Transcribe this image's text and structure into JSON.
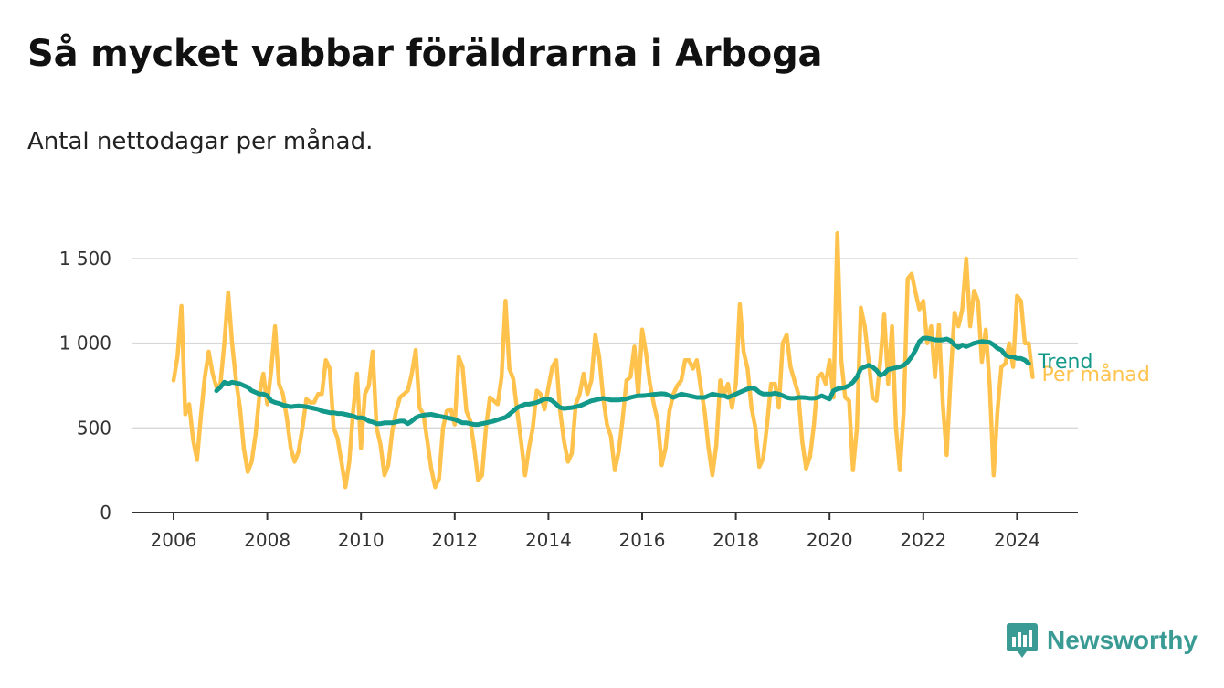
{
  "header": {
    "title": "Så mycket vabbar föräldrarna i Arboga",
    "subtitle": "Antal nettodagar per månad."
  },
  "brand": {
    "name": "Newsworthy",
    "icon": "newsworthy-logo-icon",
    "color": "#3a9b94"
  },
  "chart_data": {
    "type": "line",
    "title": "Så mycket vabbar föräldrarna i Arboga",
    "subtitle": "Antal nettodagar per månad.",
    "xlabel": "",
    "ylabel": "",
    "x_ticks": [
      2006,
      2008,
      2010,
      2012,
      2014,
      2016,
      2018,
      2020,
      2022,
      2024
    ],
    "x_tick_labels": [
      "2006",
      "2008",
      "2010",
      "2012",
      "2014",
      "2016",
      "2018",
      "2020",
      "2022",
      "2024"
    ],
    "y_ticks": [
      0,
      500,
      1000,
      1500
    ],
    "y_tick_labels": [
      "0",
      "500",
      "1 000",
      "1 500"
    ],
    "ylim": [
      0,
      1700
    ],
    "xlim": [
      "2005-07",
      "2024-12"
    ],
    "grid": "horizontal",
    "legend": "direct labels at right end of lines",
    "series": [
      {
        "name": "Per månad",
        "color": "#ffc34d",
        "start": "2006-01",
        "frequency": "monthly",
        "values": [
          780,
          920,
          1220,
          580,
          640,
          430,
          310,
          570,
          800,
          950,
          820,
          740,
          760,
          1000,
          1300,
          1000,
          780,
          620,
          380,
          240,
          300,
          460,
          700,
          820,
          640,
          840,
          1100,
          760,
          700,
          560,
          380,
          300,
          360,
          500,
          670,
          650,
          650,
          700,
          700,
          900,
          850,
          500,
          440,
          300,
          150,
          300,
          600,
          820,
          380,
          700,
          750,
          950,
          500,
          400,
          220,
          280,
          480,
          600,
          680,
          700,
          720,
          820,
          960,
          620,
          580,
          420,
          260,
          150,
          200,
          500,
          600,
          610,
          520,
          920,
          860,
          600,
          540,
          380,
          190,
          220,
          500,
          680,
          660,
          640,
          800,
          1250,
          850,
          790,
          600,
          420,
          220,
          380,
          500,
          720,
          700,
          610,
          740,
          860,
          900,
          600,
          420,
          300,
          350,
          640,
          700,
          820,
          700,
          780,
          1050,
          920,
          680,
          520,
          450,
          250,
          360,
          550,
          780,
          800,
          980,
          690,
          1080,
          940,
          760,
          640,
          540,
          280,
          380,
          600,
          700,
          750,
          780,
          900,
          900,
          850,
          900,
          740,
          600,
          380,
          220,
          400,
          780,
          700,
          760,
          620,
          760,
          1230,
          950,
          850,
          620,
          500,
          270,
          320,
          520,
          760,
          760,
          620,
          1000,
          1050,
          860,
          780,
          700,
          420,
          260,
          330,
          520,
          800,
          820,
          760,
          900,
          680,
          1650,
          900,
          680,
          660,
          250,
          500,
          1210,
          1100,
          900,
          680,
          660,
          900,
          1170,
          760,
          1100,
          500,
          250,
          600,
          1380,
          1410,
          1300,
          1200,
          1250,
          1000,
          1100,
          800,
          1110,
          640,
          340,
          800,
          1180,
          1100,
          1200,
          1500,
          1100,
          1310,
          1250,
          890,
          1080,
          750,
          220,
          600,
          860,
          880,
          1000,
          860,
          1280,
          1250,
          1000,
          1000,
          800
        ]
      },
      {
        "name": "Trend",
        "color": "#13998a",
        "start": "2006-12",
        "frequency": "monthly",
        "values": [
          720,
          740,
          770,
          760,
          770,
          765,
          760,
          750,
          740,
          720,
          710,
          700,
          700,
          690,
          660,
          650,
          645,
          635,
          630,
          625,
          628,
          630,
          628,
          625,
          620,
          615,
          610,
          600,
          595,
          590,
          590,
          585,
          585,
          580,
          575,
          570,
          560,
          560,
          555,
          540,
          535,
          525,
          525,
          530,
          530,
          530,
          535,
          540,
          540,
          525,
          540,
          560,
          570,
          575,
          578,
          580,
          575,
          570,
          565,
          560,
          555,
          550,
          540,
          530,
          530,
          525,
          520,
          520,
          525,
          530,
          535,
          540,
          548,
          555,
          562,
          580,
          600,
          620,
          630,
          640,
          640,
          645,
          650,
          660,
          670,
          672,
          660,
          640,
          620,
          615,
          618,
          620,
          625,
          630,
          640,
          650,
          660,
          665,
          670,
          675,
          670,
          665,
          665,
          665,
          668,
          672,
          680,
          685,
          690,
          690,
          692,
          695,
          698,
          700,
          702,
          700,
          690,
          680,
          690,
          700,
          695,
          690,
          685,
          680,
          680,
          680,
          690,
          700,
          695,
          690,
          690,
          680,
          690,
          700,
          710,
          720,
          730,
          735,
          730,
          710,
          700,
          700,
          700,
          705,
          700,
          690,
          680,
          675,
          675,
          680,
          680,
          678,
          675,
          675,
          680,
          690,
          680,
          670,
          720,
          730,
          735,
          740,
          750,
          770,
          800,
          850,
          860,
          870,
          860,
          840,
          810,
          820,
          845,
          850,
          855,
          860,
          870,
          890,
          920,
          960,
          1010,
          1030,
          1030,
          1025,
          1020,
          1018,
          1020,
          1025,
          1015,
          990,
          975,
          990,
          980,
          990,
          1000,
          1005,
          1010,
          1008,
          1005,
          990,
          970,
          960,
          930,
          920,
          920,
          910,
          910,
          900,
          880
        ]
      }
    ]
  }
}
